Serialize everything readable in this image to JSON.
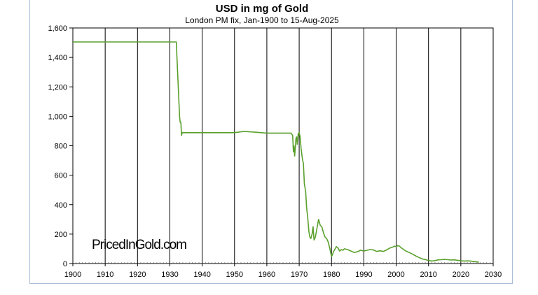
{
  "chart_data": {
    "type": "line",
    "title": "USD in mg of Gold",
    "subtitle": "London PM fix, Jan-1900 to 15-Aug-2025",
    "watermark": "PricedInGold.com",
    "xlabel": "",
    "ylabel": "",
    "xlim": [
      1900,
      2030
    ],
    "ylim": [
      0,
      1600
    ],
    "x_ticks": [
      1900,
      1910,
      1920,
      1930,
      1940,
      1950,
      1960,
      1970,
      1980,
      1990,
      2000,
      2010,
      2020,
      2030
    ],
    "x_tick_labels": [
      "1900",
      "1910",
      "1920",
      "1930",
      "1940",
      "1950",
      "1960",
      "1970",
      "1980",
      "1990",
      "2000",
      "2010",
      "2020",
      "2030"
    ],
    "y_ticks": [
      0,
      200,
      400,
      600,
      800,
      1000,
      1200,
      1400,
      1600
    ],
    "y_tick_labels": [
      "0",
      "200",
      "400",
      "600",
      "800",
      "1,000",
      "1,200",
      "1,400",
      "1,600"
    ],
    "grid": {
      "vertical": true,
      "horizontal": false
    },
    "line_color": "#5aa02c",
    "series": [
      {
        "x": [
          1900,
          1932.0,
          1932.2,
          1932.5,
          1932.8,
          1933.0,
          1933.2,
          1933.4,
          1933.6,
          1933.8,
          1934.0,
          1934.1,
          1940,
          1945,
          1950,
          1953,
          1957,
          1960,
          1963,
          1967.5,
          1968.0,
          1968.2,
          1968.4,
          1968.6,
          1968.8,
          1969.0,
          1969.2,
          1969.4,
          1969.7,
          1970.0,
          1970.3,
          1970.6,
          1971.0,
          1971.3,
          1971.6,
          1972.0,
          1972.3,
          1972.6,
          1973.0,
          1973.3,
          1973.6,
          1974.0,
          1974.3,
          1974.6,
          1975.0,
          1975.5,
          1976.0,
          1976.5,
          1977.0,
          1977.5,
          1978.0,
          1978.5,
          1979.0,
          1979.5,
          1980.0,
          1980.3,
          1980.6,
          1981.0,
          1981.5,
          1982.0,
          1982.5,
          1983.0,
          1983.5,
          1984.0,
          1985.0,
          1986.0,
          1987.0,
          1988.0,
          1989.0,
          1990.0,
          1991.0,
          1992.0,
          1993.0,
          1994.0,
          1995.0,
          1996.0,
          1997.0,
          1998.0,
          1999.0,
          1999.5,
          2000.0,
          2000.5,
          2001.0,
          2001.5,
          2002.0,
          2003.0,
          2004.0,
          2005.0,
          2006.0,
          2007.0,
          2008.0,
          2009.0,
          2010.0,
          2011.0,
          2011.7,
          2012.0,
          2013.0,
          2014.0,
          2015.0,
          2016.0,
          2017.0,
          2018.0,
          2019.0,
          2020.0,
          2021.0,
          2022.0,
          2023.0,
          2024.0,
          2025.6
        ],
        "y": [
          1505,
          1505,
          1400,
          1250,
          1100,
          1000,
          960,
          960,
          870,
          890,
          889,
          889,
          889,
          889,
          889,
          898,
          891,
          886,
          886,
          886,
          870,
          760,
          800,
          730,
          780,
          850,
          860,
          810,
          880,
          890,
          860,
          780,
          710,
          680,
          540,
          490,
          380,
          320,
          220,
          180,
          170,
          200,
          250,
          160,
          180,
          240,
          300,
          260,
          250,
          210,
          180,
          170,
          145,
          100,
          48,
          60,
          80,
          95,
          115,
          105,
          85,
          95,
          90,
          100,
          95,
          85,
          75,
          80,
          90,
          85,
          90,
          95,
          92,
          82,
          87,
          82,
          92,
          105,
          112,
          118,
          115,
          122,
          118,
          108,
          100,
          85,
          75,
          65,
          52,
          42,
          32,
          27,
          21,
          17,
          19,
          20,
          25,
          26,
          28,
          26,
          24,
          25,
          22,
          19,
          17,
          18,
          17,
          14,
          9
        ]
      }
    ]
  }
}
